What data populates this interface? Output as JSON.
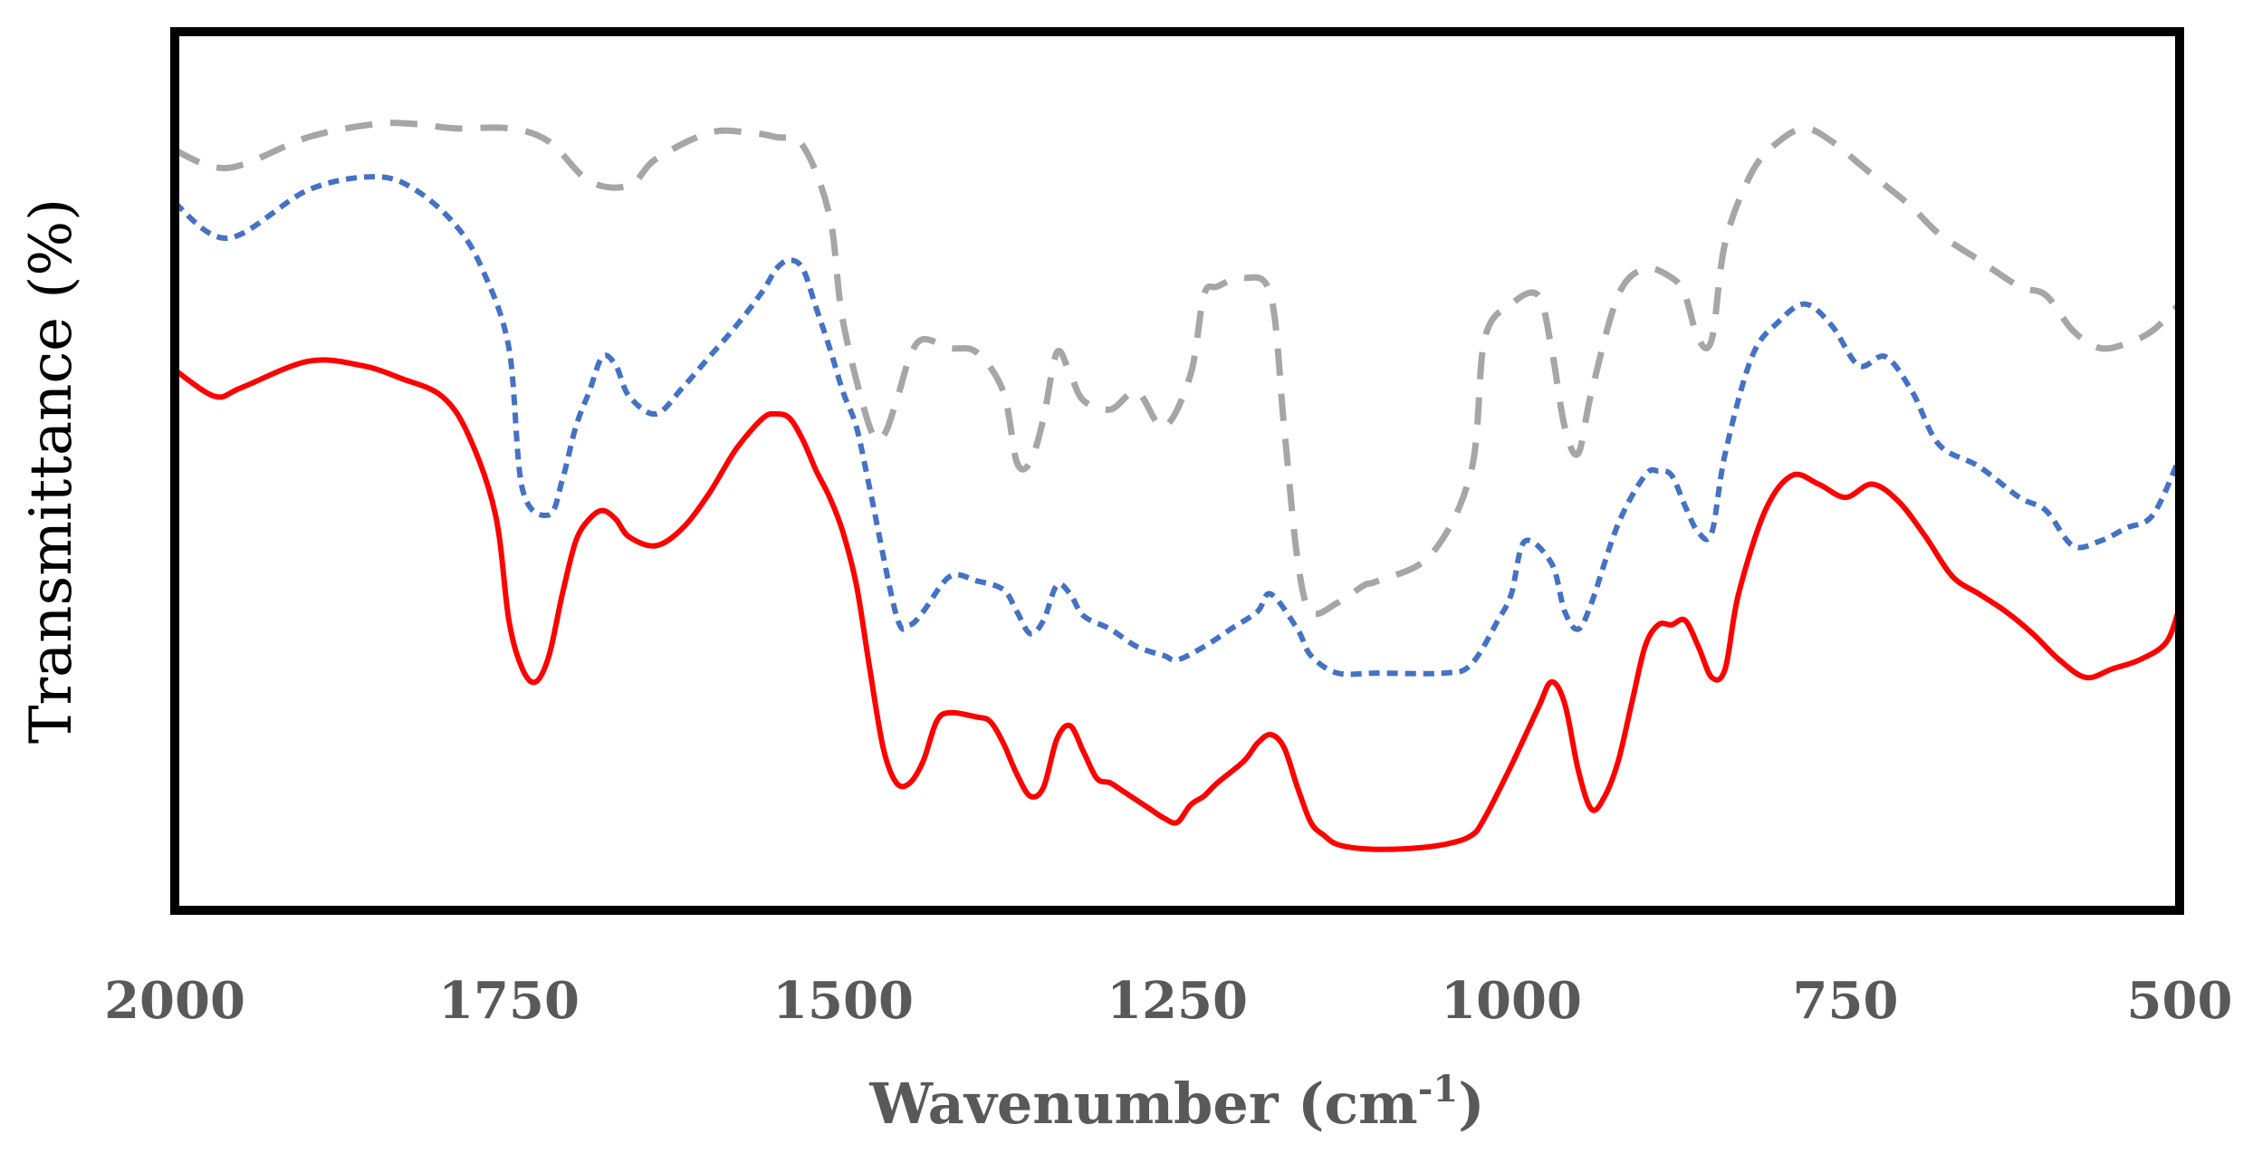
{
  "chart_data": {
    "type": "line",
    "title": "",
    "xlabel": "Wavenumber (cm",
    "xlabel_sup": "-1",
    "xlabel_end": ")",
    "ylabel": "Transmittance (%)",
    "xlim": [
      2000,
      500
    ],
    "ylim": [
      0,
      100
    ],
    "x_reversed": true,
    "grid": false,
    "y_tick_labels": false,
    "x_ticks": [
      2000,
      1750,
      1500,
      1250,
      1000,
      750,
      500
    ],
    "x_tick_labels": [
      "2000",
      "1750",
      "1500",
      "1250",
      "1000",
      "750",
      "500"
    ],
    "series": [
      {
        "name": "gray-dashed",
        "color": "#A6A6A6",
        "style": "long-dash",
        "x": [
          2000,
          1960,
          1900,
          1850,
          1820,
          1790,
          1750,
          1720,
          1690,
          1660,
          1640,
          1600,
          1570,
          1550,
          1530,
          1510,
          1500,
          1480,
          1470,
          1460,
          1450,
          1440,
          1420,
          1400,
          1380,
          1370,
          1360,
          1350,
          1340,
          1330,
          1320,
          1300,
          1280,
          1260,
          1240,
          1230,
          1220,
          1200,
          1180,
          1170,
          1160,
          1150,
          1130,
          1110,
          1100,
          1060,
          1030,
          1020,
          1000,
          980,
          970,
          960,
          950,
          940,
          920,
          900,
          880,
          870,
          860,
          850,
          840,
          820,
          800,
          780,
          760,
          740,
          720,
          700,
          680,
          650,
          620,
          600,
          580,
          560,
          540,
          520,
          500
        ],
        "y": [
          86.5,
          84.5,
          88.0,
          89.5,
          89.5,
          89.0,
          89.0,
          87.5,
          83.0,
          82.5,
          85.5,
          88.5,
          88.5,
          88.0,
          87.0,
          79.0,
          67.0,
          55.0,
          54.0,
          58.0,
          63.0,
          65.0,
          64.0,
          63.5,
          59.0,
          51.0,
          51.0,
          56.0,
          63.5,
          61.0,
          58.0,
          57.0,
          59.0,
          55.0,
          61.0,
          70.0,
          71.0,
          72.0,
          70.0,
          55.0,
          40.0,
          34.0,
          35.0,
          37.0,
          37.5,
          40.5,
          50.0,
          65.0,
          69.0,
          70.0,
          64.0,
          55.0,
          52.0,
          59.0,
          70.0,
          73.0,
          72.0,
          70.0,
          65.0,
          65.0,
          76.0,
          84.0,
          87.5,
          89.0,
          87.5,
          85.0,
          82.5,
          80.0,
          77.0,
          74.0,
          71.0,
          70.0,
          66.0,
          64.0,
          64.5,
          66.0,
          69.0
        ]
      },
      {
        "name": "blue-dotted",
        "color": "#4472C4",
        "style": "short-dash",
        "x": [
          2000,
          1960,
          1900,
          1850,
          1820,
          1790,
          1770,
          1750,
          1740,
          1720,
          1710,
          1700,
          1690,
          1680,
          1670,
          1660,
          1640,
          1620,
          1600,
          1580,
          1560,
          1550,
          1540,
          1530,
          1520,
          1510,
          1500,
          1490,
          1480,
          1460,
          1450,
          1440,
          1420,
          1400,
          1380,
          1370,
          1360,
          1350,
          1340,
          1330,
          1320,
          1300,
          1280,
          1260,
          1250,
          1230,
          1210,
          1190,
          1180,
          1160,
          1150,
          1130,
          1100,
          1050,
          1030,
          1010,
          1000,
          990,
          970,
          960,
          950,
          940,
          920,
          900,
          890,
          880,
          870,
          860,
          850,
          840,
          820,
          800,
          780,
          760,
          740,
          720,
          700,
          680,
          650,
          620,
          600,
          580,
          560,
          540,
          520,
          500
        ],
        "y": [
          80.5,
          76.5,
          82.0,
          83.5,
          82.0,
          78.0,
          73.0,
          64.0,
          48.0,
          45.0,
          49.0,
          55.0,
          59.0,
          63.0,
          62.0,
          58.5,
          56.5,
          59.5,
          63.0,
          66.5,
          70.5,
          73.0,
          74.0,
          73.0,
          68.5,
          64.0,
          59.0,
          55.0,
          48.0,
          33.5,
          32.5,
          34.0,
          38.0,
          37.5,
          36.5,
          34.0,
          31.5,
          33.0,
          37.0,
          36.0,
          33.5,
          32.0,
          30.0,
          29.0,
          28.5,
          30.0,
          32.0,
          34.0,
          36.0,
          32.0,
          29.0,
          27.0,
          27.0,
          27.0,
          28.0,
          33.0,
          36.0,
          42.0,
          39.5,
          34.0,
          32.0,
          35.0,
          44.0,
          49.5,
          50.0,
          49.5,
          46.0,
          43.0,
          43.0,
          52.0,
          63.0,
          67.0,
          69.0,
          66.5,
          62.0,
          63.0,
          59.0,
          53.0,
          50.5,
          47.0,
          45.5,
          41.5,
          42.0,
          43.5,
          45.0,
          51.5
        ]
      },
      {
        "name": "red-solid",
        "color": "#FF0000",
        "style": "solid",
        "x": [
          2000,
          1970,
          1950,
          1900,
          1860,
          1830,
          1800,
          1780,
          1760,
          1750,
          1740,
          1730,
          1720,
          1710,
          1700,
          1690,
          1680,
          1670,
          1660,
          1640,
          1620,
          1600,
          1580,
          1560,
          1550,
          1540,
          1530,
          1520,
          1510,
          1500,
          1490,
          1480,
          1470,
          1460,
          1450,
          1440,
          1430,
          1420,
          1400,
          1390,
          1380,
          1370,
          1360,
          1350,
          1340,
          1330,
          1320,
          1310,
          1300,
          1290,
          1280,
          1270,
          1260,
          1250,
          1240,
          1230,
          1220,
          1200,
          1190,
          1180,
          1170,
          1160,
          1150,
          1140,
          1130,
          1110,
          1080,
          1050,
          1030,
          1020,
          1000,
          980,
          970,
          960,
          950,
          940,
          930,
          920,
          910,
          900,
          890,
          880,
          870,
          860,
          850,
          840,
          830,
          810,
          790,
          770,
          750,
          730,
          710,
          690,
          670,
          650,
          630,
          610,
          590,
          570,
          550,
          530,
          510,
          500
        ],
        "y": [
          61.5,
          58.5,
          59.5,
          62.5,
          62.0,
          60.5,
          58.5,
          54.0,
          45.0,
          33.0,
          27.5,
          26.0,
          29.0,
          36.0,
          42.0,
          44.5,
          45.5,
          44.5,
          42.5,
          41.5,
          43.5,
          47.5,
          52.5,
          56.0,
          56.5,
          56.0,
          53.5,
          50.0,
          47.0,
          43.0,
          37.0,
          27.5,
          18.5,
          14.5,
          14.5,
          17.0,
          21.5,
          22.5,
          22.0,
          21.5,
          19.0,
          15.5,
          13.0,
          14.0,
          19.5,
          21.0,
          18.0,
          15.0,
          14.5,
          13.5,
          12.5,
          11.5,
          10.5,
          10.0,
          12.0,
          13.0,
          14.5,
          17.0,
          19.0,
          20.0,
          18.5,
          14.0,
          10.0,
          8.5,
          7.5,
          7.0,
          7.0,
          7.5,
          8.5,
          10.5,
          16.5,
          23.0,
          26.0,
          23.5,
          16.0,
          11.5,
          13.0,
          17.0,
          23.5,
          30.0,
          32.5,
          32.5,
          33.0,
          30.0,
          26.5,
          27.5,
          36.0,
          45.5,
          49.5,
          48.5,
          47.0,
          48.5,
          46.5,
          42.5,
          38.0,
          36.0,
          34.0,
          31.5,
          28.5,
          26.5,
          27.5,
          28.5,
          30.5,
          34.5
        ]
      }
    ]
  }
}
